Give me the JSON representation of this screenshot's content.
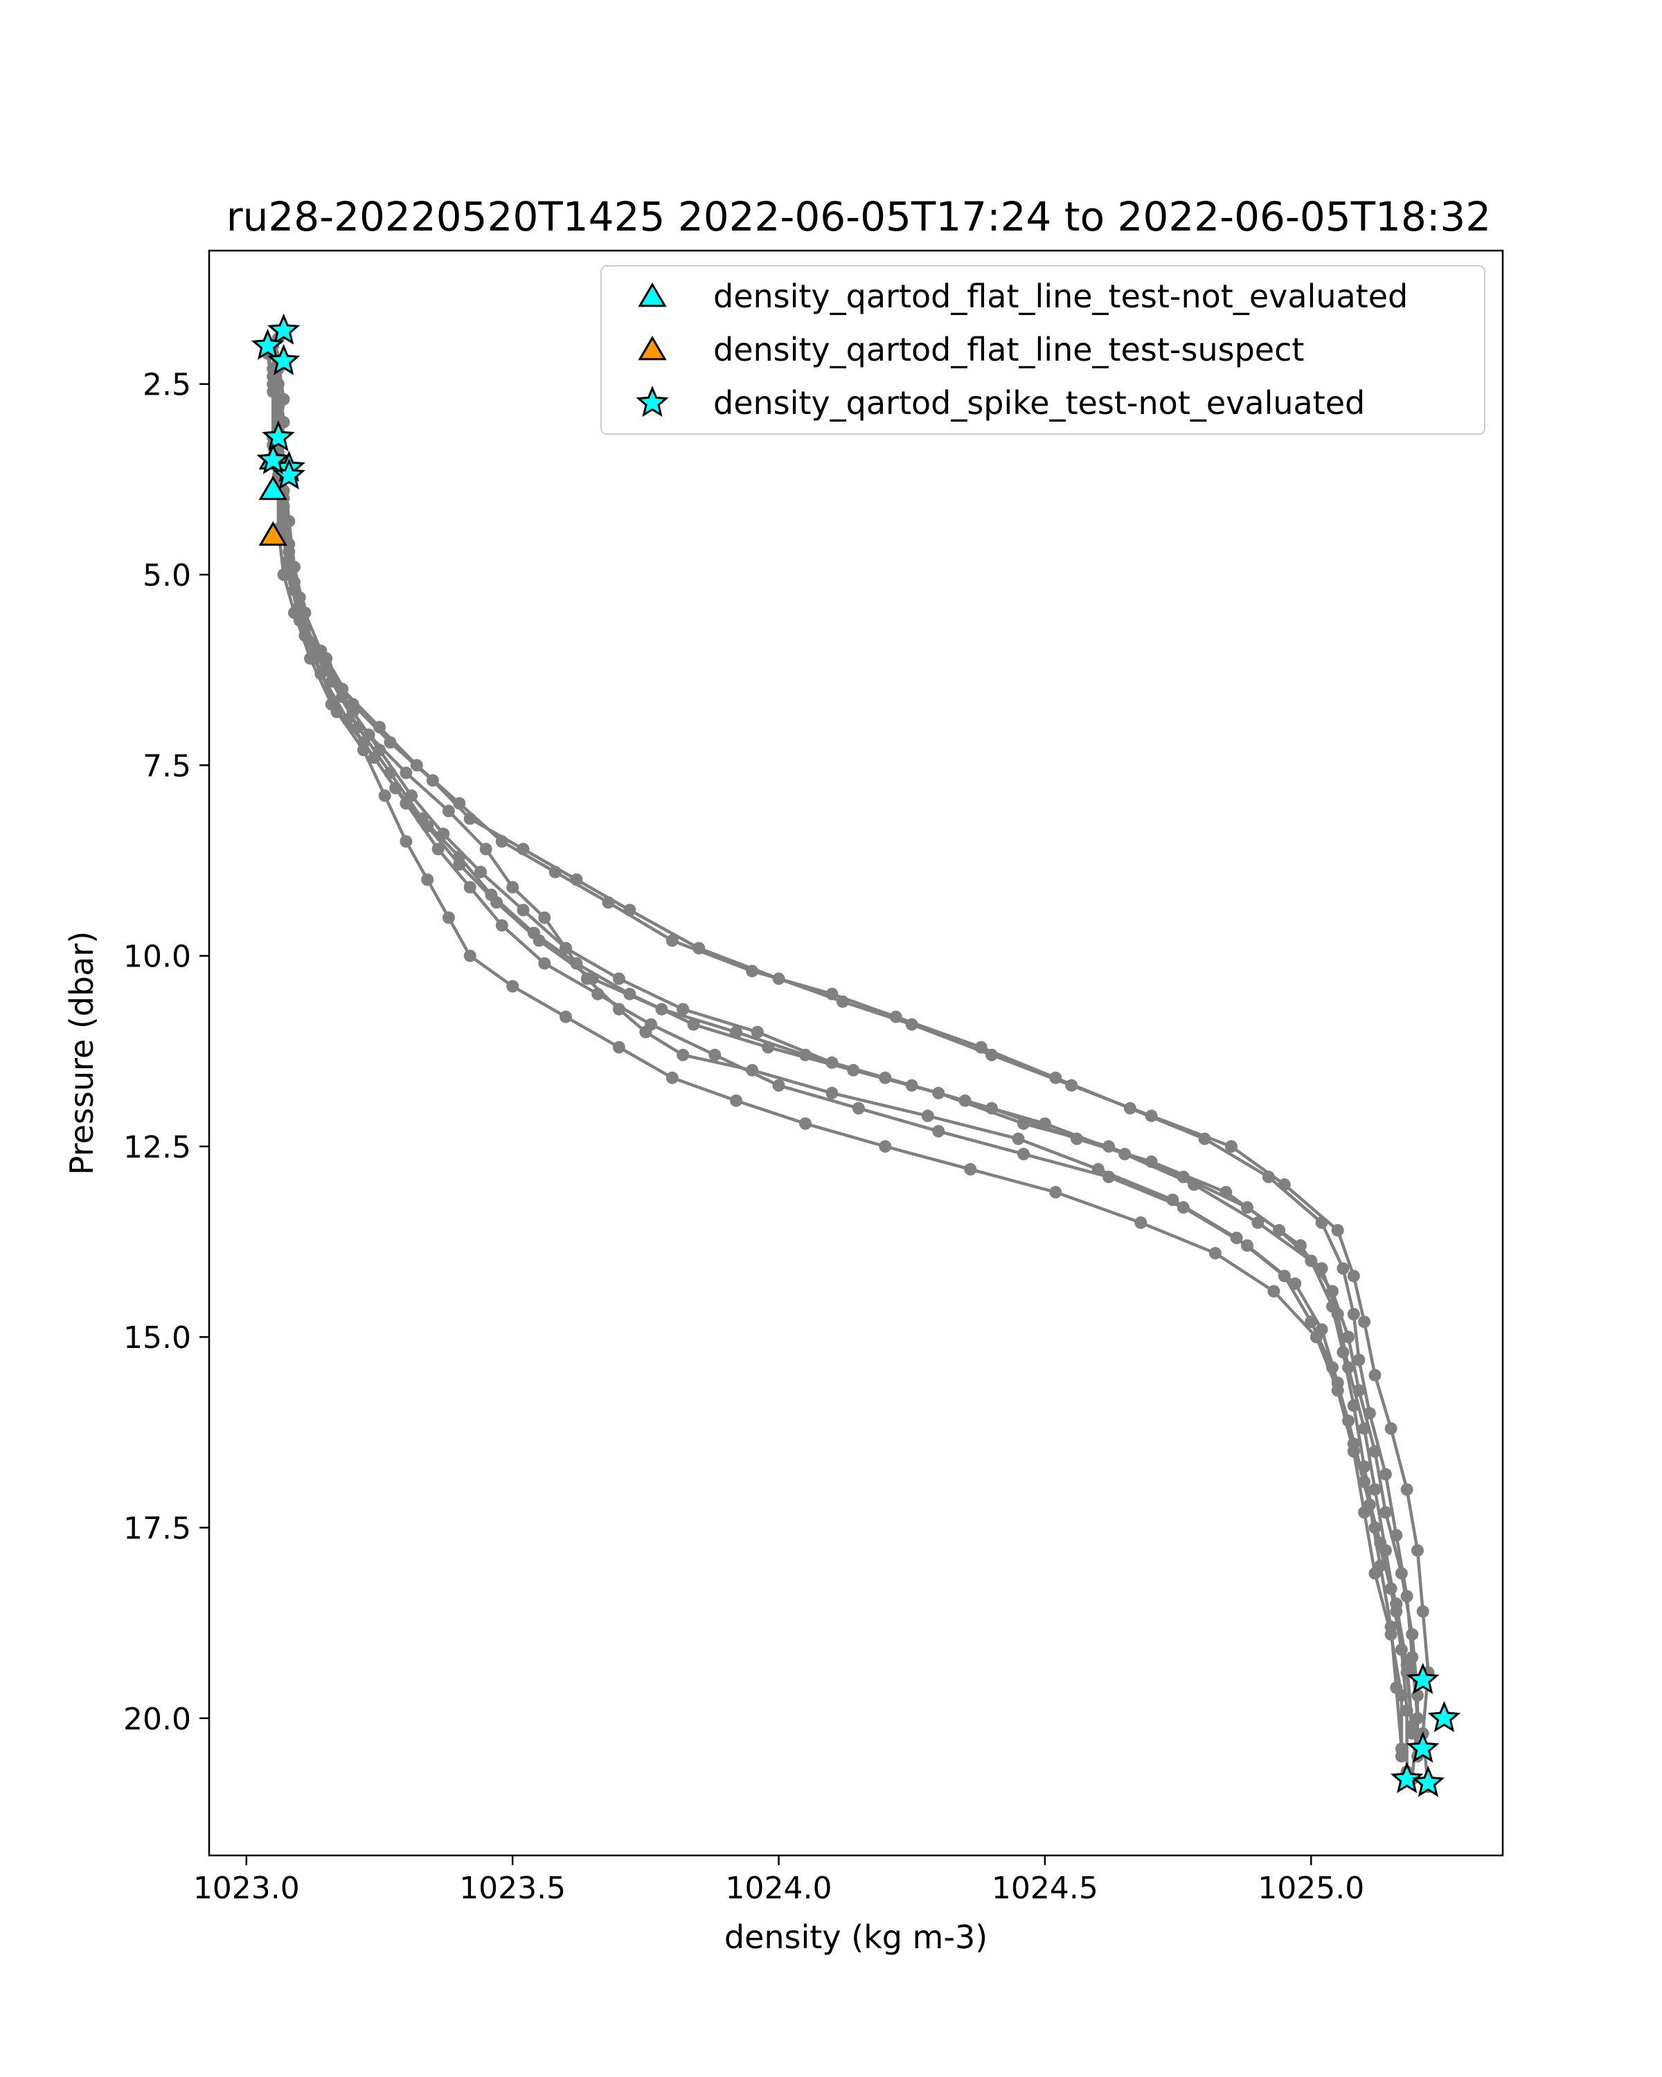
{
  "chart_data": {
    "type": "scatter",
    "title": "ru28-20220520T1425 2022-06-05T17:24 to 2022-06-05T18:32",
    "xlabel": "density (kg m-3)",
    "ylabel": "Pressure (dbar)",
    "xlim": [
      1022.93,
      1025.36
    ],
    "ylim": [
      21.8,
      0.75
    ],
    "y_inverted": true,
    "grid": false,
    "legend_position": "top-right",
    "x_ticks": [
      "1023.0",
      "1023.5",
      "1024.0",
      "1024.5",
      "1025.0"
    ],
    "y_ticks": [
      "2.5",
      "5.0",
      "7.5",
      "10.0",
      "12.5",
      "15.0",
      "17.5",
      "20.0"
    ],
    "profile_style": {
      "color": "#808080",
      "marker": "circle"
    },
    "profiles": [
      {
        "points": [
          [
            1023.06,
            1.9
          ],
          [
            1023.05,
            2.3
          ],
          [
            1023.06,
            2.8
          ],
          [
            1023.05,
            3.3
          ],
          [
            1023.06,
            3.9
          ],
          [
            1023.07,
            4.5
          ],
          [
            1023.08,
            5.0
          ],
          [
            1023.1,
            5.6
          ],
          [
            1023.15,
            6.1
          ],
          [
            1023.2,
            6.7
          ],
          [
            1023.27,
            7.2
          ],
          [
            1023.35,
            7.7
          ],
          [
            1023.42,
            8.2
          ],
          [
            1023.52,
            8.6
          ],
          [
            1023.62,
            9.0
          ],
          [
            1023.72,
            9.4
          ],
          [
            1023.85,
            9.9
          ],
          [
            1024.0,
            10.3
          ],
          [
            1024.12,
            10.6
          ],
          [
            1024.25,
            10.9
          ],
          [
            1024.4,
            11.3
          ],
          [
            1024.55,
            11.7
          ],
          [
            1024.7,
            12.1
          ],
          [
            1024.85,
            12.5
          ],
          [
            1024.95,
            13.0
          ],
          [
            1025.05,
            13.6
          ],
          [
            1025.08,
            14.2
          ],
          [
            1025.1,
            14.8
          ],
          [
            1025.12,
            15.5
          ],
          [
            1025.15,
            16.2
          ],
          [
            1025.18,
            17.0
          ],
          [
            1025.2,
            17.8
          ],
          [
            1025.21,
            18.6
          ],
          [
            1025.22,
            19.4
          ],
          [
            1025.21,
            20.2
          ],
          [
            1025.22,
            20.9
          ]
        ]
      },
      {
        "points": [
          [
            1023.05,
            2.0
          ],
          [
            1023.06,
            2.5
          ],
          [
            1023.07,
            3.0
          ],
          [
            1023.06,
            3.6
          ],
          [
            1023.07,
            4.2
          ],
          [
            1023.08,
            4.8
          ],
          [
            1023.1,
            5.4
          ],
          [
            1023.13,
            6.0
          ],
          [
            1023.18,
            6.5
          ],
          [
            1023.25,
            7.0
          ],
          [
            1023.32,
            7.5
          ],
          [
            1023.4,
            8.0
          ],
          [
            1023.48,
            8.5
          ],
          [
            1023.58,
            8.9
          ],
          [
            1023.68,
            9.3
          ],
          [
            1023.8,
            9.8
          ],
          [
            1023.95,
            10.2
          ],
          [
            1024.1,
            10.5
          ],
          [
            1024.22,
            10.8
          ],
          [
            1024.38,
            11.2
          ],
          [
            1024.52,
            11.6
          ],
          [
            1024.66,
            12.0
          ],
          [
            1024.8,
            12.4
          ],
          [
            1024.92,
            12.9
          ],
          [
            1025.02,
            13.5
          ],
          [
            1025.06,
            14.1
          ],
          [
            1025.08,
            14.7
          ],
          [
            1025.09,
            15.3
          ],
          [
            1025.11,
            16.0
          ],
          [
            1025.14,
            16.8
          ],
          [
            1025.16,
            17.6
          ],
          [
            1025.18,
            18.4
          ],
          [
            1025.19,
            19.2
          ],
          [
            1025.2,
            20.0
          ],
          [
            1025.19,
            20.8
          ]
        ]
      },
      {
        "points": [
          [
            1023.04,
            2.1
          ],
          [
            1023.05,
            2.6
          ],
          [
            1023.05,
            3.2
          ],
          [
            1023.06,
            3.8
          ],
          [
            1023.06,
            4.4
          ],
          [
            1023.07,
            5.0
          ],
          [
            1023.09,
            5.5
          ],
          [
            1023.12,
            6.1
          ],
          [
            1023.16,
            6.7
          ],
          [
            1023.22,
            7.2
          ],
          [
            1023.28,
            7.8
          ],
          [
            1023.34,
            8.3
          ],
          [
            1023.4,
            8.8
          ],
          [
            1023.47,
            9.3
          ],
          [
            1023.55,
            9.8
          ],
          [
            1023.65,
            10.3
          ],
          [
            1023.78,
            10.7
          ],
          [
            1023.92,
            11.0
          ],
          [
            1024.05,
            11.3
          ],
          [
            1024.2,
            11.6
          ],
          [
            1024.35,
            11.9
          ],
          [
            1024.5,
            12.2
          ],
          [
            1024.65,
            12.6
          ],
          [
            1024.78,
            13.0
          ],
          [
            1024.9,
            13.5
          ],
          [
            1025.0,
            14.0
          ],
          [
            1025.04,
            14.6
          ],
          [
            1025.06,
            15.2
          ],
          [
            1025.08,
            15.9
          ],
          [
            1025.1,
            16.7
          ],
          [
            1025.12,
            17.5
          ],
          [
            1025.15,
            18.3
          ],
          [
            1025.17,
            19.1
          ],
          [
            1025.18,
            19.9
          ],
          [
            1025.18,
            20.7
          ]
        ]
      },
      {
        "points": [
          [
            1023.06,
            2.2
          ],
          [
            1023.07,
            2.7
          ],
          [
            1023.06,
            3.4
          ],
          [
            1023.07,
            4.0
          ],
          [
            1023.08,
            4.6
          ],
          [
            1023.09,
            5.2
          ],
          [
            1023.11,
            5.8
          ],
          [
            1023.14,
            6.3
          ],
          [
            1023.19,
            6.9
          ],
          [
            1023.24,
            7.4
          ],
          [
            1023.3,
            8.0
          ],
          [
            1023.36,
            8.6
          ],
          [
            1023.42,
            9.1
          ],
          [
            1023.48,
            9.6
          ],
          [
            1023.56,
            10.1
          ],
          [
            1023.66,
            10.5
          ],
          [
            1023.76,
            10.9
          ],
          [
            1023.88,
            11.3
          ],
          [
            1024.0,
            11.7
          ],
          [
            1024.15,
            12.0
          ],
          [
            1024.3,
            12.3
          ],
          [
            1024.46,
            12.6
          ],
          [
            1024.62,
            12.9
          ],
          [
            1024.76,
            13.3
          ],
          [
            1024.88,
            13.8
          ],
          [
            1024.97,
            14.3
          ],
          [
            1025.02,
            14.9
          ],
          [
            1025.05,
            15.6
          ],
          [
            1025.08,
            16.4
          ],
          [
            1025.11,
            17.2
          ],
          [
            1025.13,
            18.0
          ],
          [
            1025.15,
            18.8
          ],
          [
            1025.16,
            19.6
          ],
          [
            1025.17,
            20.4
          ]
        ]
      },
      {
        "points": [
          [
            1023.05,
            2.4
          ],
          [
            1023.06,
            3.0
          ],
          [
            1023.07,
            3.6
          ],
          [
            1023.08,
            4.3
          ],
          [
            1023.09,
            4.9
          ],
          [
            1023.11,
            5.5
          ],
          [
            1023.14,
            6.0
          ],
          [
            1023.18,
            6.6
          ],
          [
            1023.23,
            7.1
          ],
          [
            1023.3,
            7.6
          ],
          [
            1023.38,
            8.1
          ],
          [
            1023.45,
            8.6
          ],
          [
            1023.5,
            9.1
          ],
          [
            1023.56,
            9.5
          ],
          [
            1023.6,
            9.9
          ],
          [
            1023.64,
            10.3
          ],
          [
            1023.7,
            10.7
          ],
          [
            1023.75,
            11.0
          ],
          [
            1023.82,
            11.3
          ],
          [
            1023.95,
            11.5
          ],
          [
            1024.1,
            11.8
          ],
          [
            1024.28,
            12.1
          ],
          [
            1024.45,
            12.4
          ],
          [
            1024.6,
            12.8
          ],
          [
            1024.74,
            13.2
          ],
          [
            1024.86,
            13.7
          ],
          [
            1024.95,
            14.2
          ],
          [
            1025.0,
            14.8
          ],
          [
            1025.04,
            15.4
          ],
          [
            1025.07,
            16.1
          ],
          [
            1025.1,
            16.9
          ],
          [
            1025.13,
            17.7
          ],
          [
            1025.16,
            18.5
          ],
          [
            1025.18,
            19.3
          ],
          [
            1025.19,
            20.1
          ]
        ]
      },
      {
        "points": [
          [
            1023.04,
            2.0
          ],
          [
            1023.05,
            2.5
          ],
          [
            1023.06,
            3.1
          ],
          [
            1023.06,
            3.7
          ],
          [
            1023.07,
            4.3
          ],
          [
            1023.08,
            4.9
          ],
          [
            1023.1,
            5.5
          ],
          [
            1023.13,
            6.1
          ],
          [
            1023.17,
            6.8
          ],
          [
            1023.22,
            7.3
          ],
          [
            1023.26,
            7.9
          ],
          [
            1023.3,
            8.5
          ],
          [
            1023.34,
            9.0
          ],
          [
            1023.38,
            9.5
          ],
          [
            1023.42,
            10.0
          ],
          [
            1023.5,
            10.4
          ],
          [
            1023.6,
            10.8
          ],
          [
            1023.7,
            11.2
          ],
          [
            1023.8,
            11.6
          ],
          [
            1023.92,
            11.9
          ],
          [
            1024.05,
            12.2
          ],
          [
            1024.2,
            12.5
          ],
          [
            1024.36,
            12.8
          ],
          [
            1024.52,
            13.1
          ],
          [
            1024.68,
            13.5
          ],
          [
            1024.82,
            13.9
          ],
          [
            1024.93,
            14.4
          ],
          [
            1025.01,
            15.0
          ],
          [
            1025.05,
            15.7
          ],
          [
            1025.08,
            16.5
          ],
          [
            1025.1,
            17.3
          ],
          [
            1025.12,
            18.1
          ],
          [
            1025.15,
            18.9
          ],
          [
            1025.17,
            19.7
          ],
          [
            1025.17,
            20.5
          ]
        ]
      },
      {
        "points": [
          [
            1023.06,
            2.3
          ],
          [
            1023.06,
            2.9
          ],
          [
            1023.07,
            3.5
          ],
          [
            1023.07,
            4.1
          ],
          [
            1023.08,
            4.7
          ],
          [
            1023.1,
            5.3
          ],
          [
            1023.12,
            5.9
          ],
          [
            1023.16,
            6.4
          ],
          [
            1023.21,
            7.0
          ],
          [
            1023.27,
            7.6
          ],
          [
            1023.33,
            8.2
          ],
          [
            1023.4,
            8.7
          ],
          [
            1023.46,
            9.2
          ],
          [
            1023.54,
            9.7
          ],
          [
            1023.62,
            10.1
          ],
          [
            1023.72,
            10.5
          ],
          [
            1023.84,
            10.9
          ],
          [
            1023.98,
            11.2
          ],
          [
            1024.14,
            11.5
          ],
          [
            1024.3,
            11.8
          ],
          [
            1024.46,
            12.2
          ],
          [
            1024.62,
            12.5
          ],
          [
            1024.76,
            12.9
          ],
          [
            1024.88,
            13.3
          ],
          [
            1024.98,
            13.8
          ],
          [
            1025.04,
            14.4
          ],
          [
            1025.07,
            15.0
          ],
          [
            1025.09,
            15.7
          ],
          [
            1025.12,
            16.5
          ],
          [
            1025.14,
            17.3
          ],
          [
            1025.17,
            18.1
          ],
          [
            1025.19,
            18.9
          ],
          [
            1025.2,
            19.7
          ],
          [
            1025.2,
            20.5
          ]
        ]
      },
      {
        "points": [
          [
            1023.05,
            2.1
          ],
          [
            1023.06,
            2.7
          ],
          [
            1023.06,
            3.3
          ],
          [
            1023.07,
            3.9
          ],
          [
            1023.07,
            4.5
          ],
          [
            1023.09,
            5.1
          ],
          [
            1023.11,
            5.7
          ],
          [
            1023.15,
            6.2
          ],
          [
            1023.2,
            6.8
          ],
          [
            1023.25,
            7.3
          ],
          [
            1023.31,
            7.9
          ],
          [
            1023.37,
            8.4
          ],
          [
            1023.44,
            8.9
          ],
          [
            1023.52,
            9.4
          ],
          [
            1023.6,
            9.9
          ],
          [
            1023.7,
            10.3
          ],
          [
            1023.82,
            10.7
          ],
          [
            1023.96,
            11.0
          ],
          [
            1024.1,
            11.4
          ],
          [
            1024.25,
            11.7
          ],
          [
            1024.4,
            12.0
          ],
          [
            1024.56,
            12.4
          ],
          [
            1024.7,
            12.7
          ],
          [
            1024.84,
            13.1
          ],
          [
            1024.94,
            13.6
          ],
          [
            1025.02,
            14.1
          ],
          [
            1025.05,
            14.7
          ],
          [
            1025.07,
            15.4
          ],
          [
            1025.1,
            16.2
          ],
          [
            1025.12,
            17.0
          ],
          [
            1025.14,
            17.8
          ],
          [
            1025.16,
            18.6
          ],
          [
            1025.18,
            19.4
          ],
          [
            1025.19,
            20.2
          ]
        ]
      }
    ],
    "series": [
      {
        "name": "density_qartod_flat_line_test-not_evaluated",
        "marker": "triangle",
        "color": "#00ffff",
        "points": [
          [
            1023.05,
            3.9
          ],
          [
            1023.05,
            3.5
          ]
        ]
      },
      {
        "name": "density_qartod_flat_line_test-suspect",
        "marker": "triangle",
        "color": "#ff9900",
        "points": [
          [
            1023.05,
            4.5
          ]
        ]
      },
      {
        "name": "density_qartod_spike_test-not_evaluated",
        "marker": "star",
        "color": "#00ffff",
        "points": [
          [
            1023.07,
            1.8
          ],
          [
            1023.04,
            2.0
          ],
          [
            1023.07,
            2.2
          ],
          [
            1023.06,
            3.2
          ],
          [
            1023.08,
            3.6
          ],
          [
            1023.08,
            3.7
          ],
          [
            1023.05,
            3.5
          ],
          [
            1025.21,
            19.5
          ],
          [
            1025.25,
            20.0
          ],
          [
            1025.21,
            20.4
          ],
          [
            1025.18,
            20.8
          ],
          [
            1025.22,
            20.85
          ]
        ]
      }
    ]
  }
}
